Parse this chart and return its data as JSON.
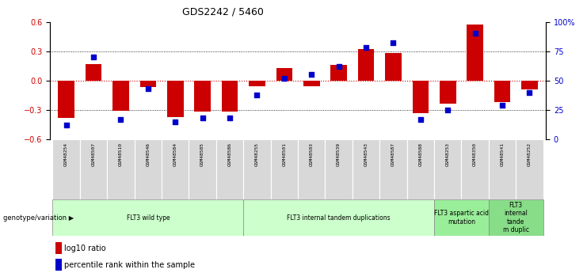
{
  "title": "GDS2242 / 5460",
  "samples": [
    "GSM48254",
    "GSM48507",
    "GSM48510",
    "GSM48546",
    "GSM48584",
    "GSM48585",
    "GSM48586",
    "GSM48255",
    "GSM48501",
    "GSM48503",
    "GSM48539",
    "GSM48543",
    "GSM48587",
    "GSM48588",
    "GSM48253",
    "GSM48350",
    "GSM48541",
    "GSM48252"
  ],
  "log10_ratio": [
    -0.38,
    0.17,
    -0.31,
    -0.07,
    -0.37,
    -0.32,
    -0.32,
    -0.06,
    0.13,
    -0.06,
    0.16,
    0.32,
    0.28,
    -0.33,
    -0.24,
    0.57,
    -0.22,
    -0.09
  ],
  "percentile_rank": [
    12,
    70,
    17,
    43,
    15,
    18,
    18,
    38,
    52,
    55,
    62,
    78,
    82,
    17,
    25,
    90,
    29,
    40
  ],
  "groups": [
    {
      "label": "FLT3 wild type",
      "start": 0,
      "end": 7,
      "color": "#ccffcc"
    },
    {
      "label": "FLT3 internal tandem duplications",
      "start": 7,
      "end": 14,
      "color": "#ccffcc"
    },
    {
      "label": "FLT3 aspartic acid\nmutation",
      "start": 14,
      "end": 16,
      "color": "#99ee99"
    },
    {
      "label": "FLT3\ninternal\ntande\nm duplic",
      "start": 16,
      "end": 18,
      "color": "#88dd88"
    }
  ],
  "ylim_left": [
    -0.6,
    0.6
  ],
  "ylim_right": [
    0,
    100
  ],
  "yticks_left": [
    -0.6,
    -0.3,
    0.0,
    0.3,
    0.6
  ],
  "yticks_right": [
    0,
    25,
    50,
    75,
    100
  ],
  "ytick_labels_right": [
    "0",
    "25",
    "50",
    "75",
    "100%"
  ],
  "bar_color": "#cc0000",
  "dot_color": "#0000cc",
  "hline_color": "#cc0000",
  "dotted_color": "#000000",
  "bg_color": "#ffffff",
  "tick_label_color_left": "#cc0000",
  "tick_label_color_right": "#0000cc",
  "bar_width": 0.6
}
